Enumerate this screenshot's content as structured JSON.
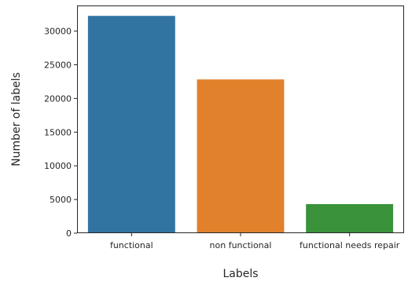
{
  "chart_data": {
    "type": "bar",
    "categories": [
      "functional",
      "non functional",
      "functional needs repair"
    ],
    "values": [
      32259,
      22824,
      4317
    ],
    "colors": [
      "#3274a1",
      "#e1812c",
      "#3a923a"
    ],
    "xlabel": "Labels",
    "ylabel": "Number of labels",
    "ylim": [
      0,
      33800
    ],
    "yticks": [
      0,
      5000,
      10000,
      15000,
      20000,
      25000,
      30000
    ],
    "grid": false,
    "legend": "none"
  }
}
